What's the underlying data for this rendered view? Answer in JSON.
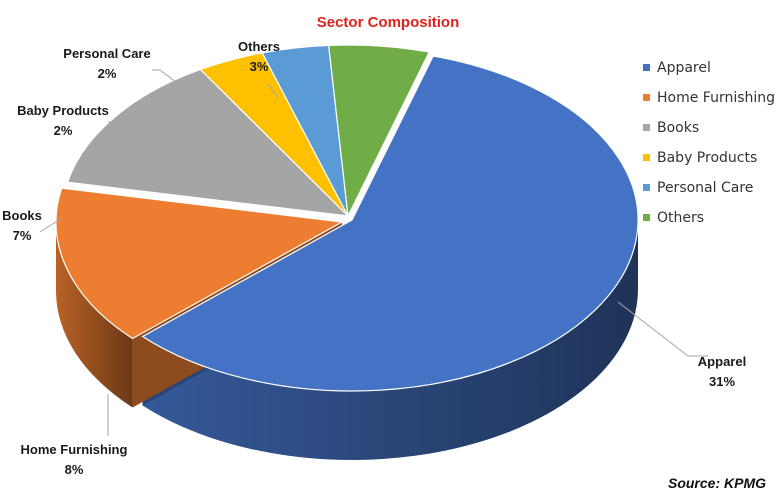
{
  "chart_data": {
    "type": "pie",
    "title": "Sector Composition",
    "source": "Source: KPMG",
    "legend_position": "right",
    "slices": [
      {
        "name": "Apparel",
        "value": 31,
        "label": "31%",
        "color": "#4472c4"
      },
      {
        "name": "Home Furnishing",
        "value": 8,
        "label": "8%",
        "color": "#ed7d31"
      },
      {
        "name": "Books",
        "value": 7,
        "label": "7%",
        "color": "#a5a5a5"
      },
      {
        "name": "Baby Products",
        "value": 2,
        "label": "2%",
        "color": "#ffc000"
      },
      {
        "name": "Personal Care",
        "value": 2,
        "label": "2%",
        "color": "#5b9bd5"
      },
      {
        "name": "Others",
        "value": 3,
        "label": "3%",
        "color": "#70ad47"
      }
    ]
  }
}
